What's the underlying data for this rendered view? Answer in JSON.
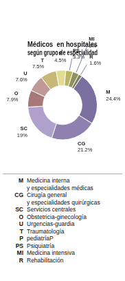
{
  "chart_data": {
    "type": "doughnut",
    "title": [
      "Médicos  en hospitales",
      "según grupo de especialidad"
    ],
    "categories": [
      "M",
      "CG",
      "SC",
      "O",
      "U",
      "T",
      "P",
      "PS",
      "MI",
      "R"
    ],
    "values": [
      24.4,
      21.2,
      19.0,
      7.9,
      7.6,
      7.5,
      4.5,
      3.3,
      3.0,
      1.6
    ],
    "value_labels": [
      "24.4%",
      "21.2%",
      "19%",
      "7.9%",
      "7.6%",
      "7.5%",
      "4.5%",
      "3.3%",
      "3%",
      "1.6%"
    ],
    "colors": [
      "#7b6fa0",
      "#9080b0",
      "#afa0cc",
      "#a87878",
      "#c09898",
      "#c8b878",
      "#e0dc90",
      "#b8b460",
      "#909060",
      "#808060"
    ],
    "data_labels": true,
    "annotations": [
      {
        "label": "M",
        "text": [
          "Medicina interna",
          "y especialidades médicas"
        ]
      },
      {
        "label": "CG",
        "text": [
          "Cirugía general",
          "y especialidades quirúrgicas"
        ]
      },
      {
        "label": "SC",
        "text": [
          "Servicios centrales"
        ]
      },
      {
        "label": "O",
        "text": [
          "Obstetricia-ginecología"
        ]
      },
      {
        "label": "U",
        "text": [
          "Urgencias-guardia"
        ]
      },
      {
        "label": "T",
        "text": [
          "Traumatología"
        ]
      },
      {
        "label": "P",
        "text": [
          "pediatríaP"
        ]
      },
      {
        "label": "PS",
        "text": [
          "Psiquiatría"
        ]
      },
      {
        "label": "MI",
        "text": [
          "Medicina intensiva"
        ]
      },
      {
        "label": "R",
        "text": [
          "Rehabilitación"
        ]
      }
    ]
  }
}
